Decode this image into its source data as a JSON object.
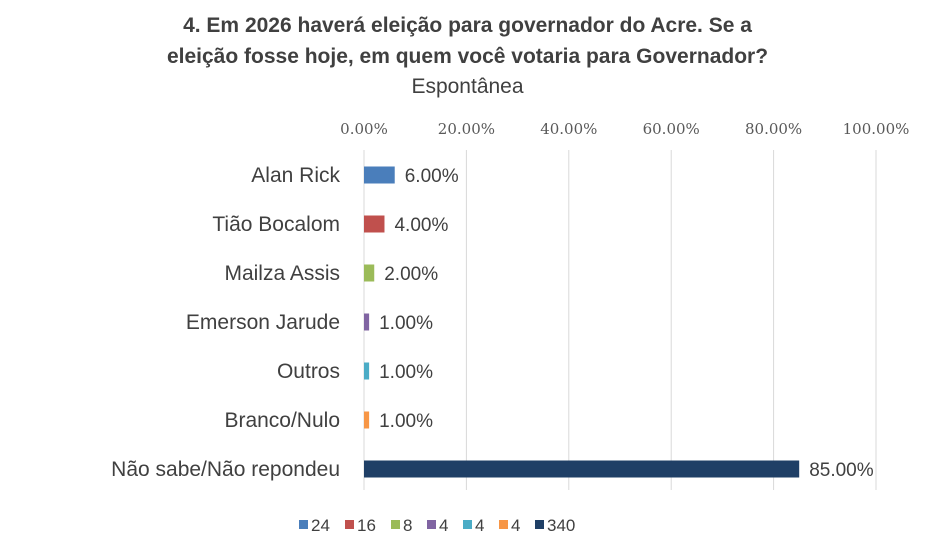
{
  "chart_data": {
    "type": "bar",
    "orientation": "horizontal",
    "title_line1": "4. Em 2026 haverá eleição para governador do Acre. Se a",
    "title_line2": "eleição fosse hoje, em quem você votaria para Governador?",
    "subtitle": "Espontânea",
    "categories": [
      "Alan Rick",
      "Tião Bocalom",
      "Mailza Assis",
      "Emerson Jarude",
      "Outros",
      "Branco/Nulo",
      "Não sabe/Não repondeu"
    ],
    "values": [
      6.0,
      4.0,
      2.0,
      1.0,
      1.0,
      1.0,
      85.0
    ],
    "value_labels": [
      "6.00%",
      "4.00%",
      "2.00%",
      "1.00%",
      "1.00%",
      "1.00%",
      "85.00%"
    ],
    "colors": [
      "#4a7ebb",
      "#c0504d",
      "#9bbb59",
      "#8064a2",
      "#4bacc6",
      "#f79646",
      "#1f3f66"
    ],
    "x_ticks": [
      "0.00%",
      "20.00%",
      "40.00%",
      "60.00%",
      "80.00%",
      "100.00%"
    ],
    "xlim": [
      0,
      100
    ],
    "grid": true,
    "axis_position": "top",
    "legend_position": "bottom",
    "legend": [
      "24",
      "16",
      "8",
      "4",
      "4",
      "4",
      "340"
    ]
  }
}
